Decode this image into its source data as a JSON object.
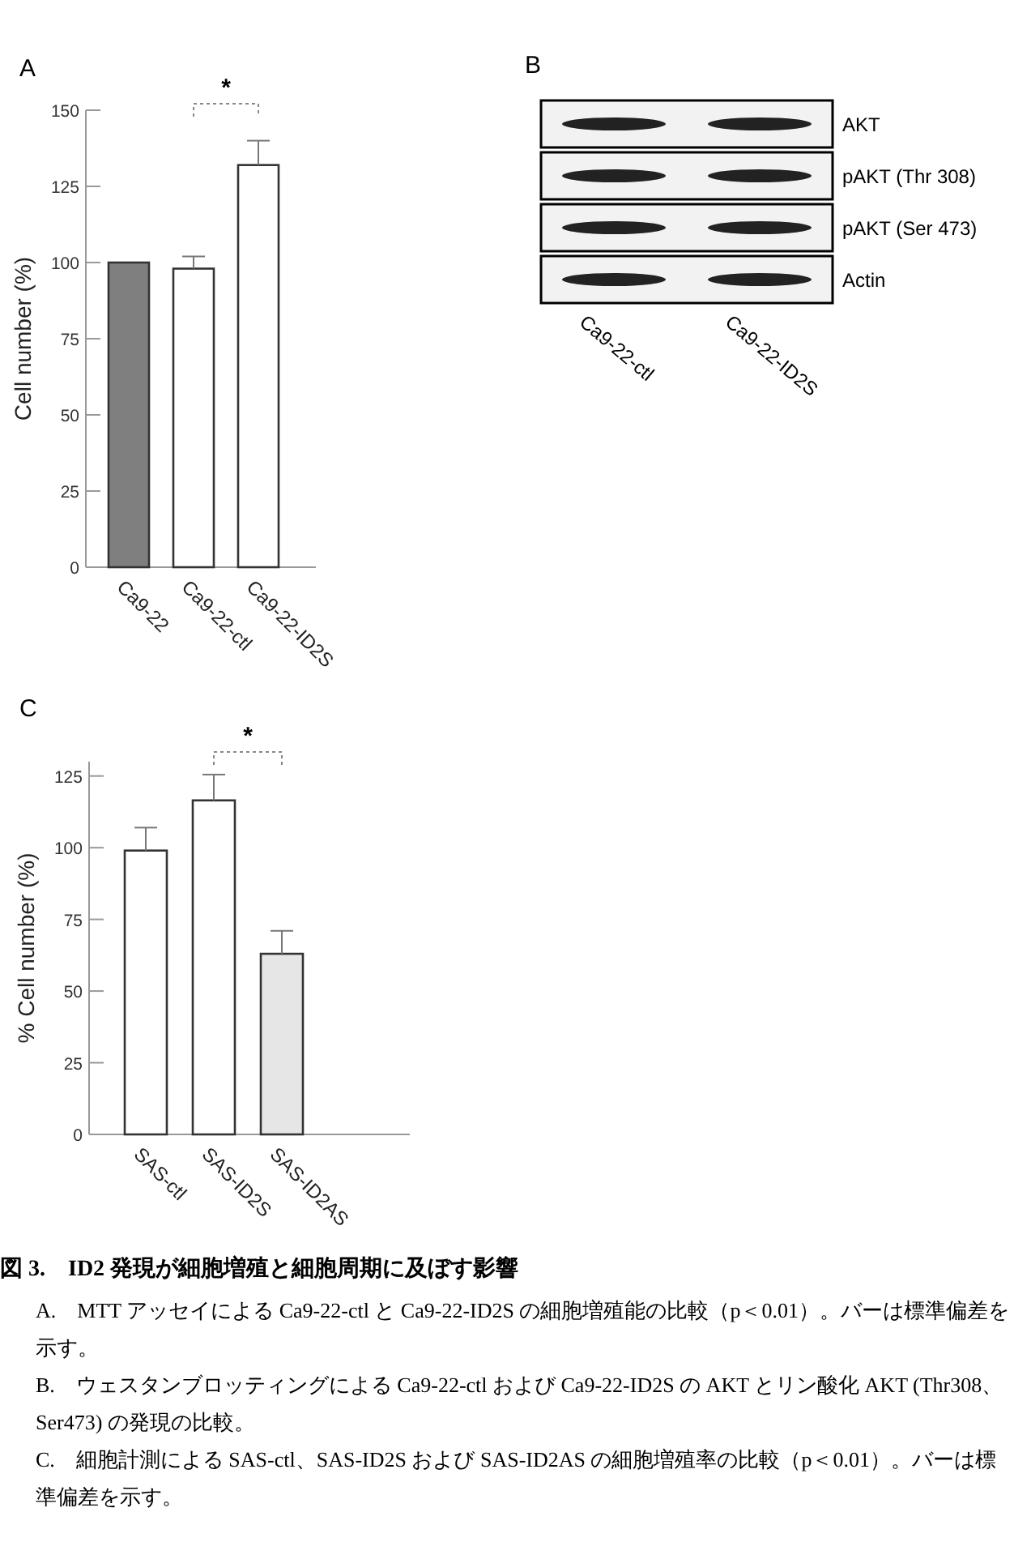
{
  "chart_data": [
    {
      "type": "bar",
      "title": "A",
      "ylabel": "Cell number (%)",
      "categories": [
        "Ca9-22",
        "Ca9-22-ctl",
        "Ca9-22-ID2S"
      ],
      "values": [
        100,
        98,
        132
      ],
      "errors": [
        null,
        [
          98,
          102
        ],
        [
          132,
          140
        ]
      ],
      "colors": [
        "#7f7f7f",
        "#ffffff",
        "#ffffff"
      ],
      "ylim": [
        0,
        150
      ],
      "yticks": [
        0,
        25,
        50,
        75,
        100,
        125,
        150
      ],
      "annotations": [
        "*"
      ]
    },
    {
      "type": "other",
      "title": "B",
      "categories": [
        "Ca9-22-ctl",
        "Ca9-22-ID2S"
      ],
      "annotations": [
        "AKT",
        "pAKT (Thr 308)",
        "pAKT (Ser 473)",
        "Actin"
      ]
    },
    {
      "type": "bar",
      "title": "C",
      "ylabel": "% Cell number (%)",
      "categories": [
        "SAS-ctl",
        "SAS-ID2S",
        "SAS-ID2AS"
      ],
      "values": [
        99,
        116.5,
        63
      ],
      "errors": [
        [
          99,
          107
        ],
        [
          116.5,
          125.5
        ],
        [
          63,
          71
        ]
      ],
      "colors": [
        "#ffffff",
        "#ffffff",
        "#e6e6e6"
      ],
      "ylim": [
        0,
        130
      ],
      "yticks": [
        0,
        25,
        50,
        75,
        100,
        125
      ],
      "annotations": [
        "*"
      ]
    },
    {
      "type": "other",
      "title": "図 3.　ID2 発現が細胞増殖と細胞周期に及ぼす影響",
      "annotations": [
        "A.　MTT アッセイによる Ca9-22-ctl と Ca9-22-ID2S の細胞増殖能の比較（p＜0.01）。バーは標準偏差を示す。",
        "B.　ウェスタンブロッティングによる Ca9-22-ctl および Ca9-22-ID2S の AKT とリン酸化 AKT (Thr308、Ser473) の発現の比較。",
        "C.　細胞計測による SAS-ctl、SAS-ID2S および SAS-ID2AS の細胞増殖率の比較（p＜0.01）。バーは標準偏差を示す。"
      ]
    }
  ]
}
